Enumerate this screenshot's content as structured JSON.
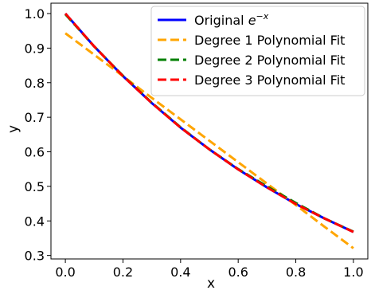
{
  "chart_data": {
    "type": "line",
    "xlabel": "x",
    "ylabel": "y",
    "xlim": [
      -0.05,
      1.05
    ],
    "ylim": [
      0.29,
      1.03
    ],
    "x_ticks": [
      0.0,
      0.2,
      0.4,
      0.6,
      0.8,
      1.0
    ],
    "x_tick_labels": [
      "0.0",
      "0.2",
      "0.4",
      "0.6",
      "0.8",
      "1.0"
    ],
    "y_ticks": [
      0.3,
      0.4,
      0.5,
      0.6,
      0.7,
      0.8,
      0.9,
      1.0
    ],
    "y_tick_labels": [
      "0.3",
      "0.4",
      "0.5",
      "0.6",
      "0.7",
      "0.8",
      "0.9",
      "1.0"
    ],
    "grid": false,
    "legend_position": "top-right",
    "legend_fontsize": 16,
    "x": [
      0.0,
      0.1,
      0.2,
      0.3,
      0.4,
      0.5,
      0.6,
      0.7,
      0.8,
      0.9,
      1.0
    ],
    "series": [
      {
        "name": "Original e^{-x}",
        "legend_main": "Original ",
        "legend_sup": "−x",
        "legend_base": "e",
        "color": "#0000ff",
        "style": "solid",
        "values": [
          1.0,
          0.905,
          0.819,
          0.741,
          0.67,
          0.607,
          0.549,
          0.497,
          0.449,
          0.407,
          0.368
        ]
      },
      {
        "name": "Degree 1 Polynomial Fit",
        "color": "#ffa500",
        "style": "dashed",
        "values": [
          0.943,
          0.881,
          0.819,
          0.756,
          0.694,
          0.632,
          0.57,
          0.508,
          0.446,
          0.383,
          0.321
        ]
      },
      {
        "name": "Degree 2 Polynomial Fit",
        "color": "#008000",
        "style": "dashed",
        "values": [
          0.998,
          0.905,
          0.82,
          0.742,
          0.671,
          0.607,
          0.55,
          0.5,
          0.452,
          0.407,
          0.369
        ]
      },
      {
        "name": "Degree 3 Polynomial Fit",
        "color": "#ff0000",
        "style": "dashed",
        "values": [
          1.0,
          0.905,
          0.819,
          0.741,
          0.67,
          0.607,
          0.549,
          0.497,
          0.449,
          0.407,
          0.368
        ]
      }
    ]
  }
}
